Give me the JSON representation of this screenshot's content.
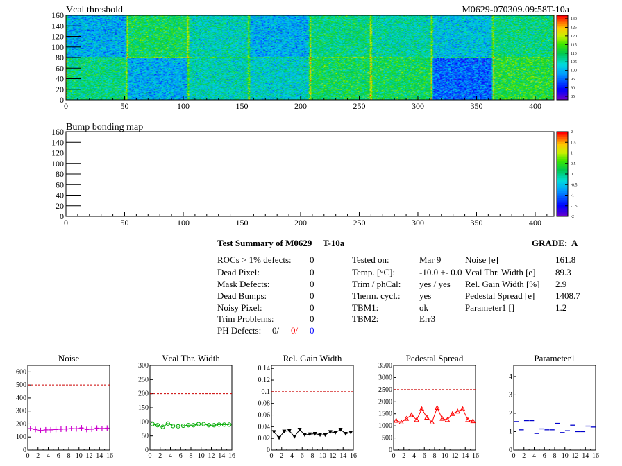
{
  "header": {
    "left_title": "Vcal threshold",
    "right_title": "M0629-070309.09:58T-10a"
  },
  "maps": {
    "threshold": {
      "title": "Vcal threshold",
      "x_ticks": [
        "0",
        "50",
        "100",
        "150",
        "200",
        "250",
        "300",
        "350",
        "400"
      ],
      "y_ticks": [
        "0",
        "20",
        "40",
        "60",
        "80",
        "100",
        "120",
        "140",
        "160"
      ],
      "z_ticks": [
        "85",
        "90",
        "95",
        "100",
        "105",
        "110",
        "115",
        "120",
        "125",
        "130"
      ],
      "xlim": [
        0,
        416
      ],
      "ylim": [
        0,
        160
      ],
      "zlim": [
        83,
        132
      ]
    },
    "bump": {
      "title": "Bump bonding map",
      "x_ticks": [
        "0",
        "50",
        "100",
        "150",
        "200",
        "250",
        "300",
        "350",
        "400"
      ],
      "y_ticks": [
        "0",
        "20",
        "40",
        "60",
        "80",
        "100",
        "120",
        "140",
        "160"
      ],
      "z_ticks": [
        "-2",
        "-1.5",
        "-1",
        "-0.5",
        "0",
        "0.5",
        "1",
        "1.5",
        "2"
      ],
      "xlim": [
        0,
        416
      ],
      "ylim": [
        0,
        160
      ],
      "zlim": [
        -2,
        2
      ]
    }
  },
  "summary": {
    "title": "Test Summary of M0629",
    "tag": "T-10a",
    "grade_label": "GRADE:",
    "grade_value": "A",
    "defects": [
      {
        "label": "ROCs > 1% defects:",
        "value": "0"
      },
      {
        "label": "Dead Pixel:",
        "value": "0"
      },
      {
        "label": "Mask Defects:",
        "value": "0"
      },
      {
        "label": "Dead Bumps:",
        "value": "0"
      },
      {
        "label": "Noisy Pixel:",
        "value": "0"
      },
      {
        "label": "Trim Problems:",
        "value": "0"
      }
    ],
    "ph_defects": {
      "label": "PH Defects:",
      "v1": "0/",
      "v2": "0/",
      "v3": "0",
      "c2": "#ff0000",
      "c3": "#0000ff"
    },
    "conditions": [
      {
        "label": "Tested on:",
        "value": "Mar 9"
      },
      {
        "label": "Temp. [°C]:",
        "value": "-10.0 +- 0.0"
      },
      {
        "label": "Trim / phCal:",
        "value": "yes / yes"
      },
      {
        "label": "Therm. cycl.:",
        "value": "yes"
      },
      {
        "label": "TBM1:",
        "value": "ok"
      },
      {
        "label": "TBM2:",
        "value": "Err3"
      }
    ],
    "results": [
      {
        "label": "Noise [e]",
        "value": "161.8"
      },
      {
        "label": "Vcal Thr. Width [e]",
        "value": "89.3"
      },
      {
        "label": "Rel. Gain Width [%]",
        "value": "2.9"
      },
      {
        "label": "Pedestal Spread [e]",
        "value": "1408.7"
      },
      {
        "label": "Parameter1 []",
        "value": "1.2"
      }
    ]
  },
  "chart_data": [
    {
      "type": "line",
      "title": "Noise",
      "color": "#cc00cc",
      "marker": "plus",
      "x": [
        0,
        1,
        2,
        3,
        4,
        5,
        6,
        7,
        8,
        9,
        10,
        11,
        12,
        13,
        14,
        15
      ],
      "values": [
        165,
        158,
        150,
        155,
        155,
        158,
        160,
        162,
        165,
        163,
        170,
        158,
        160,
        168,
        165,
        168
      ],
      "ylim": [
        0,
        650
      ],
      "threshold": 500,
      "y_ticks": [
        "0",
        "100",
        "200",
        "300",
        "400",
        "500",
        "600"
      ],
      "x_ticks": [
        "0",
        "2",
        "4",
        "6",
        "8",
        "10",
        "12",
        "14",
        "16"
      ]
    },
    {
      "type": "line",
      "title": "Vcal Thr. Width",
      "color": "#00aa00",
      "marker": "circle",
      "x": [
        0,
        1,
        2,
        3,
        4,
        5,
        6,
        7,
        8,
        9,
        10,
        11,
        12,
        13,
        14,
        15
      ],
      "values": [
        92,
        88,
        82,
        94,
        85,
        84,
        86,
        88,
        88,
        92,
        92,
        88,
        88,
        90,
        90,
        90
      ],
      "ylim": [
        0,
        300
      ],
      "threshold": 200,
      "y_ticks": [
        "0",
        "50",
        "100",
        "150",
        "200",
        "250",
        "300"
      ],
      "x_ticks": [
        "0",
        "2",
        "4",
        "6",
        "8",
        "10",
        "12",
        "14",
        "16"
      ]
    },
    {
      "type": "line",
      "title": "Rel. Gain Width",
      "color": "#000000",
      "marker": "triangle-down",
      "x": [
        0,
        1,
        2,
        3,
        4,
        5,
        6,
        7,
        8,
        9,
        10,
        11,
        12,
        13,
        14,
        15
      ],
      "values": [
        0.031,
        0.021,
        0.032,
        0.033,
        0.023,
        0.035,
        0.026,
        0.027,
        0.028,
        0.026,
        0.026,
        0.031,
        0.03,
        0.035,
        0.028,
        0.03
      ],
      "ylim": [
        0,
        0.145
      ],
      "threshold": 0.1,
      "y_ticks": [
        "0",
        "0.02",
        "0.04",
        "0.06",
        "0.08",
        "0.1",
        "0.12",
        "0.14"
      ],
      "x_ticks": [
        "0",
        "2",
        "4",
        "6",
        "8",
        "10",
        "12",
        "14",
        "16"
      ]
    },
    {
      "type": "line",
      "title": "Pedestal Spread",
      "color": "#ff0000",
      "marker": "triangle-up",
      "x": [
        0,
        1,
        2,
        3,
        4,
        5,
        6,
        7,
        8,
        9,
        10,
        11,
        12,
        13,
        14,
        15
      ],
      "values": [
        1220,
        1150,
        1300,
        1450,
        1250,
        1700,
        1350,
        1150,
        1750,
        1300,
        1250,
        1500,
        1600,
        1700,
        1250,
        1200
      ],
      "ylim": [
        0,
        3500
      ],
      "threshold": 2500,
      "y_ticks": [
        "0",
        "500",
        "1000",
        "1500",
        "2000",
        "2500",
        "3000",
        "3500"
      ],
      "x_ticks": [
        "0",
        "2",
        "4",
        "6",
        "8",
        "10",
        "12",
        "14",
        "16"
      ]
    },
    {
      "type": "scatter",
      "title": "Parameter1",
      "color": "#0000cc",
      "marker": "hbar",
      "x": [
        0,
        1,
        2,
        3,
        4,
        5,
        6,
        7,
        8,
        9,
        10,
        11,
        12,
        13,
        14,
        15
      ],
      "values": [
        1.55,
        1.1,
        1.6,
        1.6,
        0.9,
        1.15,
        1.1,
        1.1,
        1.45,
        0.95,
        1.05,
        1.35,
        1.0,
        1.0,
        1.3,
        1.25
      ],
      "ylim": [
        0,
        4.6
      ],
      "y_ticks": [
        "0",
        "1",
        "2",
        "3",
        "4"
      ],
      "x_ticks": [
        "0",
        "2",
        "4",
        "6",
        "8",
        "10",
        "12",
        "14",
        "16"
      ]
    }
  ]
}
